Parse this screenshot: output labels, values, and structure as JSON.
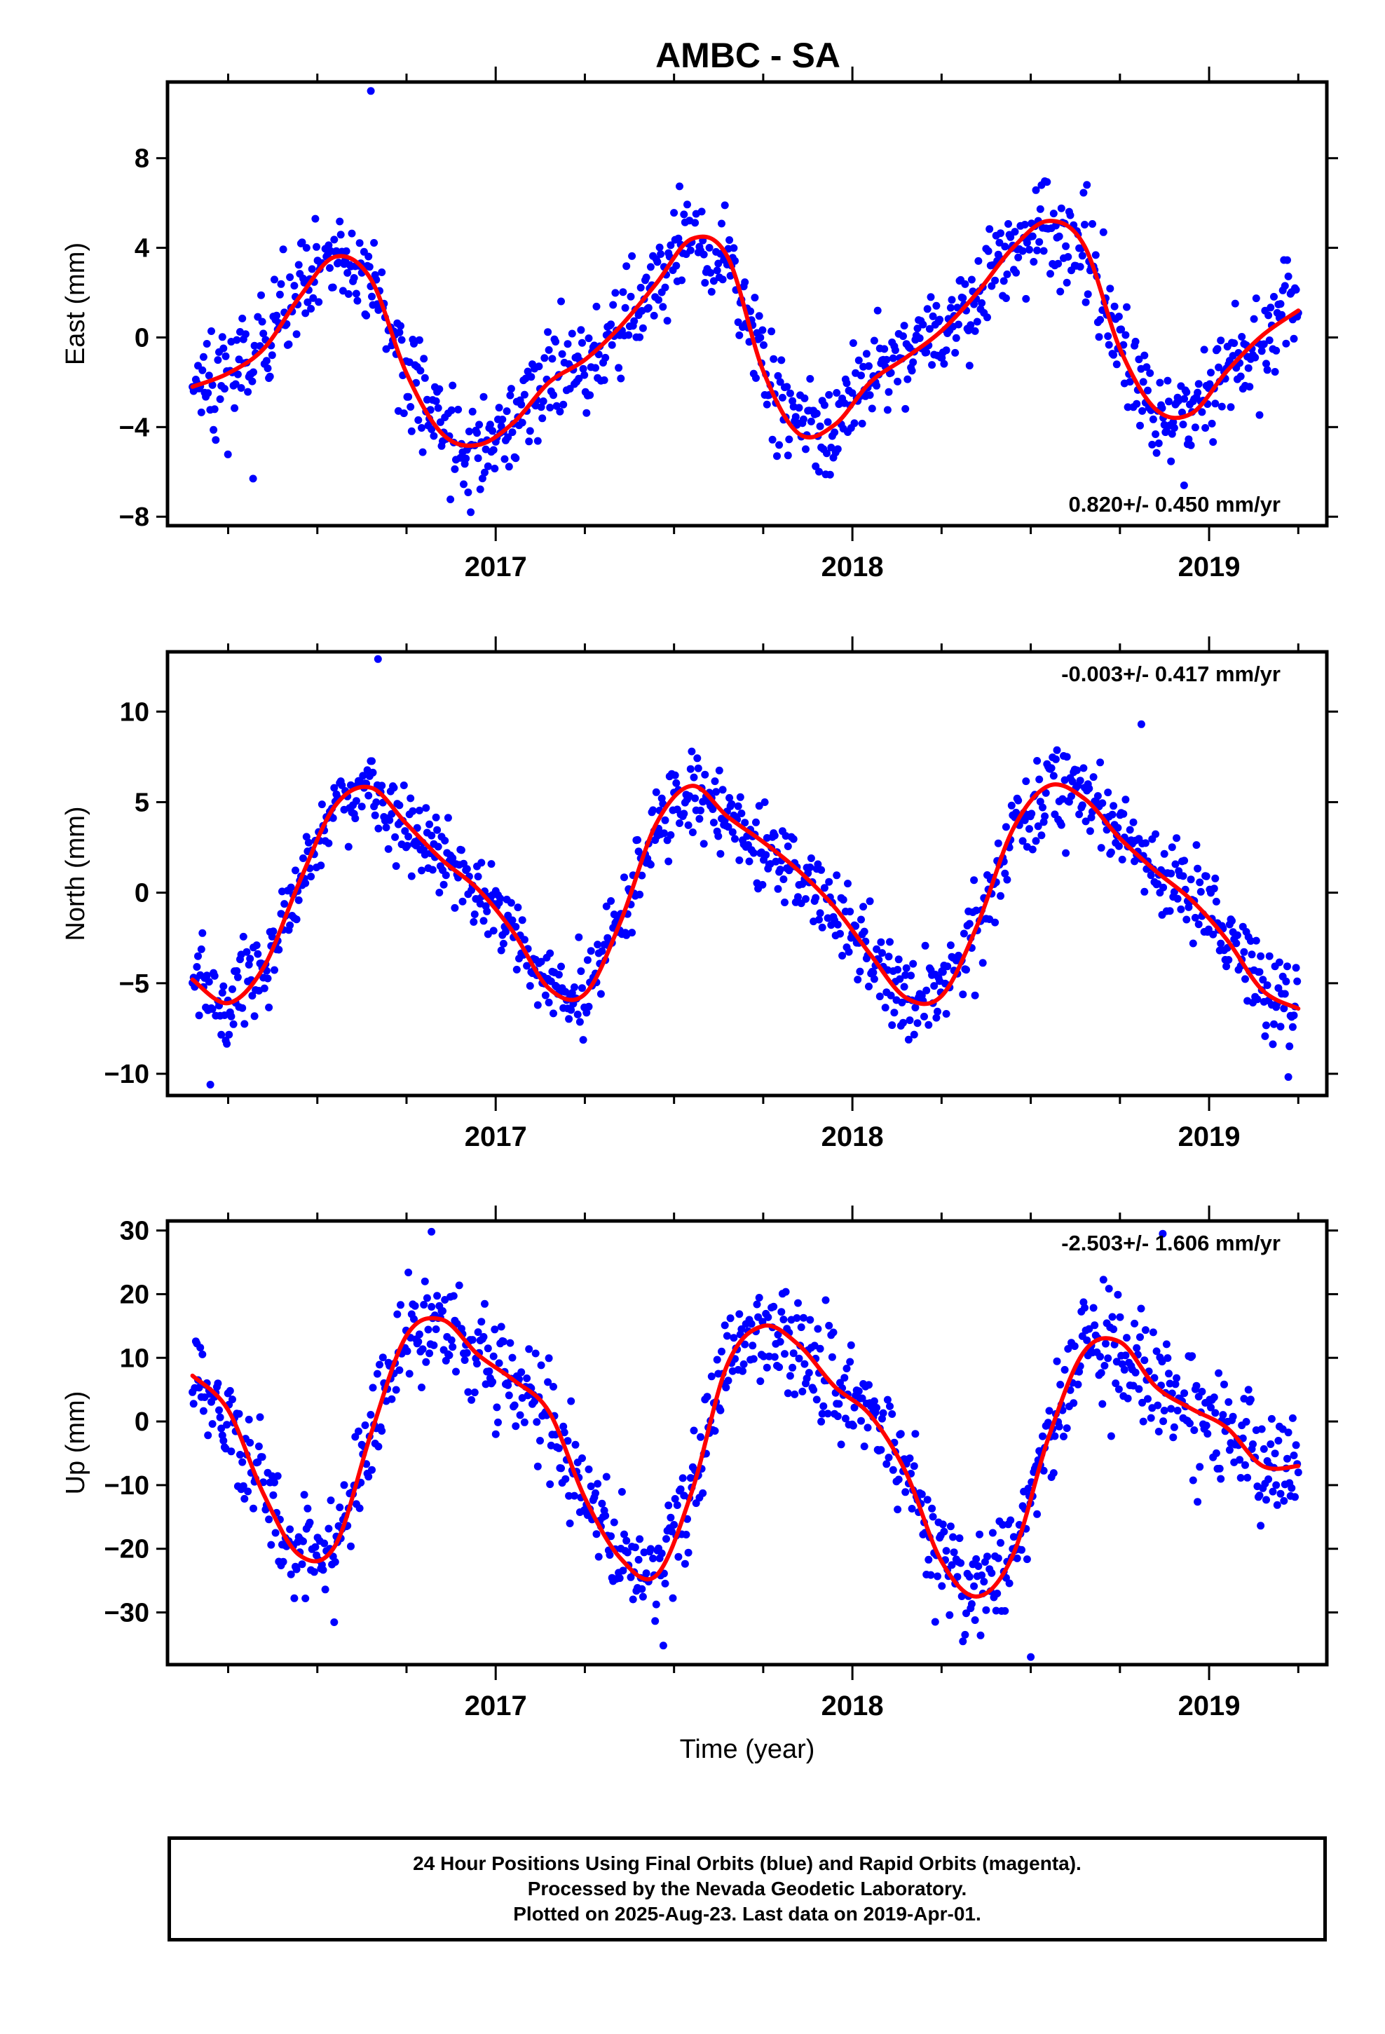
{
  "title": "AMBC - SA",
  "xlabel": "Time (year)",
  "colors": {
    "final": "#0000ff",
    "fit": "#ff0000",
    "rapid": "#ff00ff",
    "axis": "#000000"
  },
  "footer": {
    "line1": "24 Hour Positions Using Final Orbits (blue) and Rapid Orbits (magenta).",
    "line2": "Processed by the Nevada Geodetic Laboratory.",
    "line3": "Plotted on 2025-Aug-23. Last data on 2019-Apr-01."
  },
  "chart_data": [
    {
      "type": "scatter",
      "id": "east",
      "ylabel": "East (mm)",
      "xlim": [
        2016.08,
        2019.33
      ],
      "ylim": [
        -8.4,
        11.4
      ],
      "yticks": [
        -8,
        -4,
        0,
        4,
        8
      ],
      "xticks_major": [
        2017,
        2018,
        2019
      ],
      "xticks_minor": [
        2016.25,
        2016.5,
        2016.75,
        2017.25,
        2017.5,
        2017.75,
        2018.25,
        2018.5,
        2018.75,
        2019.25
      ],
      "rate_label": "0.820+/- 0.450 mm/yr",
      "rate_position": "bottom-right",
      "fit_curve": {
        "x": [
          2016.15,
          2016.25,
          2016.35,
          2016.45,
          2016.55,
          2016.65,
          2016.75,
          2016.85,
          2016.95,
          2017.05,
          2017.15,
          2017.25,
          2017.35,
          2017.45,
          2017.55,
          2017.65,
          2017.75,
          2017.85,
          2017.95,
          2018.05,
          2018.15,
          2018.25,
          2018.35,
          2018.45,
          2018.55,
          2018.65,
          2018.75,
          2018.85,
          2018.95,
          2019.05,
          2019.15,
          2019.25
        ],
        "y": [
          -2.2,
          -1.6,
          -0.5,
          1.8,
          3.6,
          2.6,
          -1.6,
          -4.3,
          -4.8,
          -3.8,
          -2.0,
          -1.0,
          0.5,
          2.4,
          4.4,
          3.6,
          -1.5,
          -4.3,
          -3.9,
          -2.0,
          -0.9,
          0.3,
          2.0,
          4.0,
          5.2,
          4.1,
          -0.5,
          -3.2,
          -3.4,
          -1.5,
          0.1,
          1.2
        ]
      },
      "scatter_spread": 1.1,
      "outliers": [
        {
          "x": 2016.65,
          "y": 11.0
        },
        {
          "x": 2016.32,
          "y": -6.3
        },
        {
          "x": 2016.93,
          "y": -7.8
        },
        {
          "x": 2018.93,
          "y": -6.6
        }
      ]
    },
    {
      "type": "scatter",
      "id": "north",
      "ylabel": "North (mm)",
      "xlim": [
        2016.08,
        2019.33
      ],
      "ylim": [
        -11.2,
        13.3
      ],
      "yticks": [
        -10,
        -5,
        0,
        5,
        10
      ],
      "xticks_major": [
        2017,
        2018,
        2019
      ],
      "xticks_minor": [
        2016.25,
        2016.5,
        2016.75,
        2017.25,
        2017.5,
        2017.75,
        2018.25,
        2018.5,
        2018.75,
        2019.25
      ],
      "rate_label": "-0.003+/- 0.417 mm/yr",
      "rate_position": "top-right",
      "fit_curve": {
        "x": [
          2016.15,
          2016.25,
          2016.35,
          2016.45,
          2016.55,
          2016.65,
          2016.75,
          2016.85,
          2016.95,
          2017.05,
          2017.15,
          2017.25,
          2017.35,
          2017.45,
          2017.55,
          2017.65,
          2017.75,
          2017.85,
          2017.95,
          2018.05,
          2018.15,
          2018.25,
          2018.35,
          2018.45,
          2018.55,
          2018.65,
          2018.75,
          2018.85,
          2018.95,
          2019.05,
          2019.15,
          2019.25
        ],
        "y": [
          -4.8,
          -6.1,
          -4.1,
          0.6,
          4.8,
          5.8,
          3.8,
          1.8,
          0.2,
          -2.2,
          -5.3,
          -5.6,
          -1.6,
          3.8,
          5.9,
          4.2,
          2.8,
          1.2,
          -0.8,
          -3.4,
          -5.8,
          -5.7,
          -1.8,
          3.5,
          5.9,
          5.2,
          3.0,
          1.2,
          -0.4,
          -2.6,
          -5.4,
          -6.4
        ]
      },
      "scatter_spread": 1.15,
      "outliers": [
        {
          "x": 2016.67,
          "y": 12.9
        },
        {
          "x": 2016.2,
          "y": -10.6
        },
        {
          "x": 2018.81,
          "y": 9.3
        }
      ]
    },
    {
      "type": "scatter",
      "id": "up",
      "ylabel": "Up (mm)",
      "xlim": [
        2016.08,
        2019.33
      ],
      "ylim": [
        -38.2,
        31.5
      ],
      "yticks": [
        -30,
        -20,
        -10,
        0,
        10,
        20,
        30
      ],
      "xticks_major": [
        2017,
        2018,
        2019
      ],
      "xticks_minor": [
        2016.25,
        2016.5,
        2016.75,
        2017.25,
        2017.5,
        2017.75,
        2018.25,
        2018.5,
        2018.75,
        2019.25
      ],
      "rate_label": "-2.503+/- 1.606 mm/yr",
      "rate_position": "top-right",
      "fit_curve": {
        "x": [
          2016.15,
          2016.25,
          2016.35,
          2016.45,
          2016.55,
          2016.65,
          2016.75,
          2016.85,
          2016.95,
          2017.05,
          2017.15,
          2017.25,
          2017.35,
          2017.45,
          2017.55,
          2017.65,
          2017.75,
          2017.85,
          2017.95,
          2018.05,
          2018.15,
          2018.25,
          2018.35,
          2018.45,
          2018.55,
          2018.65,
          2018.75,
          2018.85,
          2018.95,
          2019.05,
          2019.15,
          2019.25
        ],
        "y": [
          7.2,
          1.8,
          -11.5,
          -21.0,
          -19.5,
          -2.0,
          13.5,
          16.0,
          10.5,
          6.5,
          1.5,
          -12.0,
          -21.5,
          -24.2,
          -11.0,
          9.0,
          15.0,
          12.0,
          5.5,
          1.0,
          -8.0,
          -22.0,
          -27.5,
          -21.0,
          -2.5,
          11.0,
          12.5,
          5.5,
          2.0,
          -1.0,
          -7.0,
          -7.0
        ]
      },
      "scatter_spread": 4.2,
      "outliers": [
        {
          "x": 2016.82,
          "y": 29.8
        },
        {
          "x": 2018.87,
          "y": 29.5
        },
        {
          "x": 2017.47,
          "y": -35.2
        },
        {
          "x": 2018.5,
          "y": -37.0
        }
      ]
    }
  ]
}
